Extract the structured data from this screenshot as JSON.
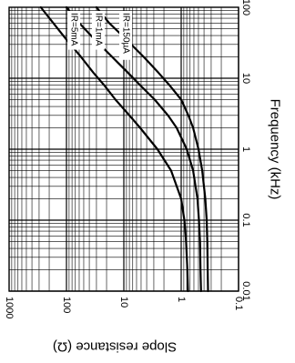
{
  "chart_data": {
    "type": "line",
    "title": "",
    "orientation": "rotated-90-clockwise",
    "xlabel": "Frequency (kHz)",
    "ylabel": "Slope resistance (Ω)",
    "x_scale": "log",
    "y_scale": "log",
    "xlim": [
      0.01,
      100
    ],
    "ylim": [
      0.1,
      1000
    ],
    "grid": true,
    "x_ticks": [
      {
        "value": 0.01,
        "label": "0.01"
      },
      {
        "value": 0.1,
        "label": "0.1"
      },
      {
        "value": 1,
        "label": "1"
      },
      {
        "value": 10,
        "label": "10"
      },
      {
        "value": 100,
        "label": "100"
      }
    ],
    "y_ticks": [
      {
        "value": 1000,
        "label": "1000"
      },
      {
        "value": 100,
        "label": "100"
      },
      {
        "value": 10,
        "label": "10"
      },
      {
        "value": 1,
        "label": "1"
      },
      {
        "value": 0.1,
        "label": "0.1"
      }
    ],
    "series": [
      {
        "name": "IR=150µA",
        "label_at": [
          10,
          100
        ],
        "x": [
          0.01,
          0.02,
          0.05,
          0.1,
          0.2,
          0.5,
          1,
          2,
          3,
          5,
          8,
          12,
          20,
          35,
          60,
          100
        ],
        "y": [
          0.76,
          0.78,
          0.82,
          0.88,
          1.0,
          1.5,
          2.6,
          5.2,
          8.0,
          14,
          22,
          34,
          56,
          100,
          170,
          280
        ]
      },
      {
        "name": "IR=1mA",
        "label_at": [
          30,
          100
        ],
        "x": [
          0.01,
          0.02,
          0.05,
          0.1,
          0.2,
          0.5,
          1,
          2,
          3,
          5,
          8,
          12,
          20,
          35,
          60,
          100
        ],
        "y": [
          0.45,
          0.46,
          0.47,
          0.49,
          0.52,
          0.62,
          0.8,
          1.2,
          1.7,
          2.9,
          5.2,
          8.5,
          16,
          32,
          60,
          100
        ]
      },
      {
        "name": "IR=5mA",
        "label_at": [
          80,
          100
        ],
        "x": [
          0.01,
          0.02,
          0.05,
          0.1,
          0.2,
          0.5,
          1,
          2,
          3,
          5,
          8,
          12,
          20,
          35,
          60,
          100
        ],
        "y": [
          0.34,
          0.345,
          0.35,
          0.36,
          0.38,
          0.43,
          0.5,
          0.62,
          0.75,
          1.0,
          1.6,
          2.5,
          4.5,
          9,
          18,
          30
        ]
      }
    ]
  }
}
